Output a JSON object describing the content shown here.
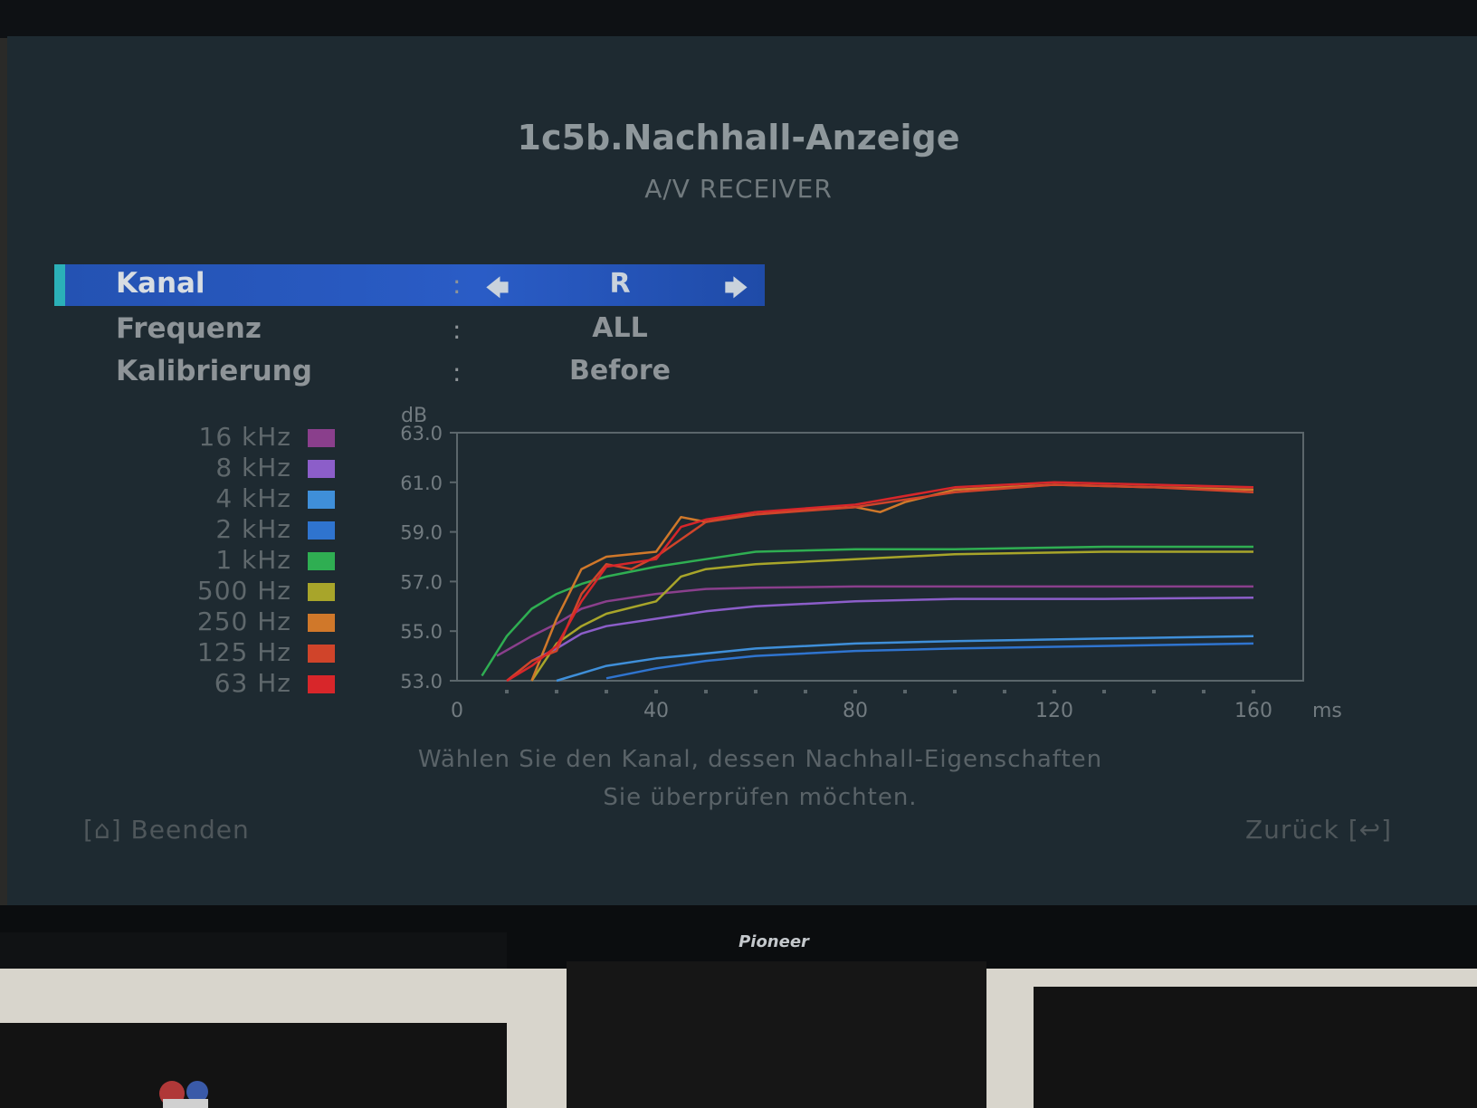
{
  "screen": {
    "title": "1c5b.Nachhall-Anzeige",
    "subtitle": "A/V RECEIVER"
  },
  "menu": {
    "items": [
      {
        "label": "Kanal",
        "colon": ":",
        "value": "R",
        "selected": true
      },
      {
        "label": "Frequenz",
        "colon": ":",
        "value": "ALL",
        "selected": false
      },
      {
        "label": "Kalibrierung",
        "colon": ":",
        "value": "Before",
        "selected": false
      }
    ],
    "arrow_left": "🡄",
    "arrow_right": "🡆"
  },
  "legend": [
    {
      "label": "16 kHz",
      "color": "#8a3f8c"
    },
    {
      "label": "8 kHz",
      "color": "#8c5ec9"
    },
    {
      "label": "4 kHz",
      "color": "#3f8fd9"
    },
    {
      "label": "2 kHz",
      "color": "#2f74cf"
    },
    {
      "label": "1 kHz",
      "color": "#2fae52"
    },
    {
      "label": "500 Hz",
      "color": "#a8a52a"
    },
    {
      "label": "250 Hz",
      "color": "#d0782a"
    },
    {
      "label": "125 Hz",
      "color": "#d0442a"
    },
    {
      "label": "63 Hz",
      "color": "#d8262a"
    }
  ],
  "chart_data": {
    "type": "line",
    "ylabel": "dB",
    "xlabel": "ms",
    "ylim": [
      53.0,
      63.0
    ],
    "xlim": [
      0,
      170
    ],
    "y_ticks": [
      "63.0",
      "61.0",
      "59.0",
      "57.0",
      "55.0",
      "53.0"
    ],
    "x_ticks": [
      "0",
      "40",
      "80",
      "120",
      "160"
    ],
    "series": [
      {
        "name": "16 kHz",
        "color": "#8a3f8c",
        "x": [
          8,
          15,
          20,
          25,
          30,
          40,
          50,
          60,
          80,
          100,
          130,
          160
        ],
        "y": [
          54.0,
          54.8,
          55.3,
          55.9,
          56.2,
          56.5,
          56.7,
          56.75,
          56.8,
          56.8,
          56.8,
          56.8
        ]
      },
      {
        "name": "8 kHz",
        "color": "#8c5ec9",
        "x": [
          15,
          20,
          25,
          30,
          40,
          50,
          60,
          80,
          100,
          130,
          160
        ],
        "y": [
          53.8,
          54.3,
          54.9,
          55.2,
          55.5,
          55.8,
          56.0,
          56.2,
          56.3,
          56.3,
          56.35
        ]
      },
      {
        "name": "4 kHz",
        "color": "#3f8fd9",
        "x": [
          20,
          25,
          30,
          40,
          50,
          60,
          80,
          100,
          130,
          160
        ],
        "y": [
          53.0,
          53.3,
          53.6,
          53.9,
          54.1,
          54.3,
          54.5,
          54.6,
          54.7,
          54.8
        ]
      },
      {
        "name": "2 kHz",
        "color": "#2f74cf",
        "x": [
          30,
          35,
          40,
          50,
          60,
          80,
          100,
          130,
          160
        ],
        "y": [
          53.1,
          53.3,
          53.5,
          53.8,
          54.0,
          54.2,
          54.3,
          54.4,
          54.5
        ]
      },
      {
        "name": "1 kHz",
        "color": "#2fae52",
        "x": [
          5,
          10,
          15,
          20,
          25,
          30,
          40,
          50,
          60,
          80,
          100,
          130,
          160
        ],
        "y": [
          53.2,
          54.8,
          55.9,
          56.5,
          56.9,
          57.2,
          57.6,
          57.9,
          58.2,
          58.3,
          58.3,
          58.4,
          58.4
        ]
      },
      {
        "name": "500 Hz",
        "color": "#a8a52a",
        "x": [
          15,
          20,
          25,
          30,
          40,
          45,
          50,
          60,
          80,
          100,
          130,
          160
        ],
        "y": [
          53.0,
          54.5,
          55.2,
          55.7,
          56.2,
          57.2,
          57.5,
          57.7,
          57.9,
          58.1,
          58.2,
          58.2
        ]
      },
      {
        "name": "250 Hz",
        "color": "#d0782a",
        "x": [
          15,
          20,
          25,
          30,
          40,
          45,
          50,
          60,
          80,
          85,
          90,
          100,
          120,
          140,
          160
        ],
        "y": [
          53.0,
          55.5,
          57.5,
          58.0,
          58.2,
          59.6,
          59.4,
          59.8,
          60.0,
          59.8,
          60.2,
          60.7,
          60.9,
          60.8,
          60.7
        ]
      },
      {
        "name": "125 Hz",
        "color": "#d0442a",
        "x": [
          10,
          15,
          20,
          25,
          30,
          35,
          40,
          50,
          60,
          80,
          90,
          100,
          120,
          140,
          160
        ],
        "y": [
          53.0,
          53.8,
          54.2,
          56.5,
          57.7,
          57.5,
          58.0,
          59.4,
          59.7,
          60.0,
          60.3,
          60.6,
          60.9,
          60.8,
          60.6
        ]
      },
      {
        "name": "63 Hz",
        "color": "#d8262a",
        "x": [
          10,
          15,
          20,
          25,
          30,
          40,
          45,
          50,
          60,
          80,
          100,
          120,
          140,
          160
        ],
        "y": [
          53.0,
          53.6,
          54.4,
          56.2,
          57.6,
          57.9,
          59.2,
          59.5,
          59.8,
          60.1,
          60.8,
          61.0,
          60.9,
          60.8
        ]
      }
    ]
  },
  "hint": {
    "line1": "Wählen Sie den Kanal, dessen Nachhall-Eigenschaften",
    "line2": "Sie überprüfen möchten."
  },
  "footer": {
    "exit_key": "[⌂]",
    "exit_label": "Beenden",
    "back_label": "Zurück",
    "back_key": "[↩]"
  },
  "device": {
    "brand": "Pioneer"
  }
}
